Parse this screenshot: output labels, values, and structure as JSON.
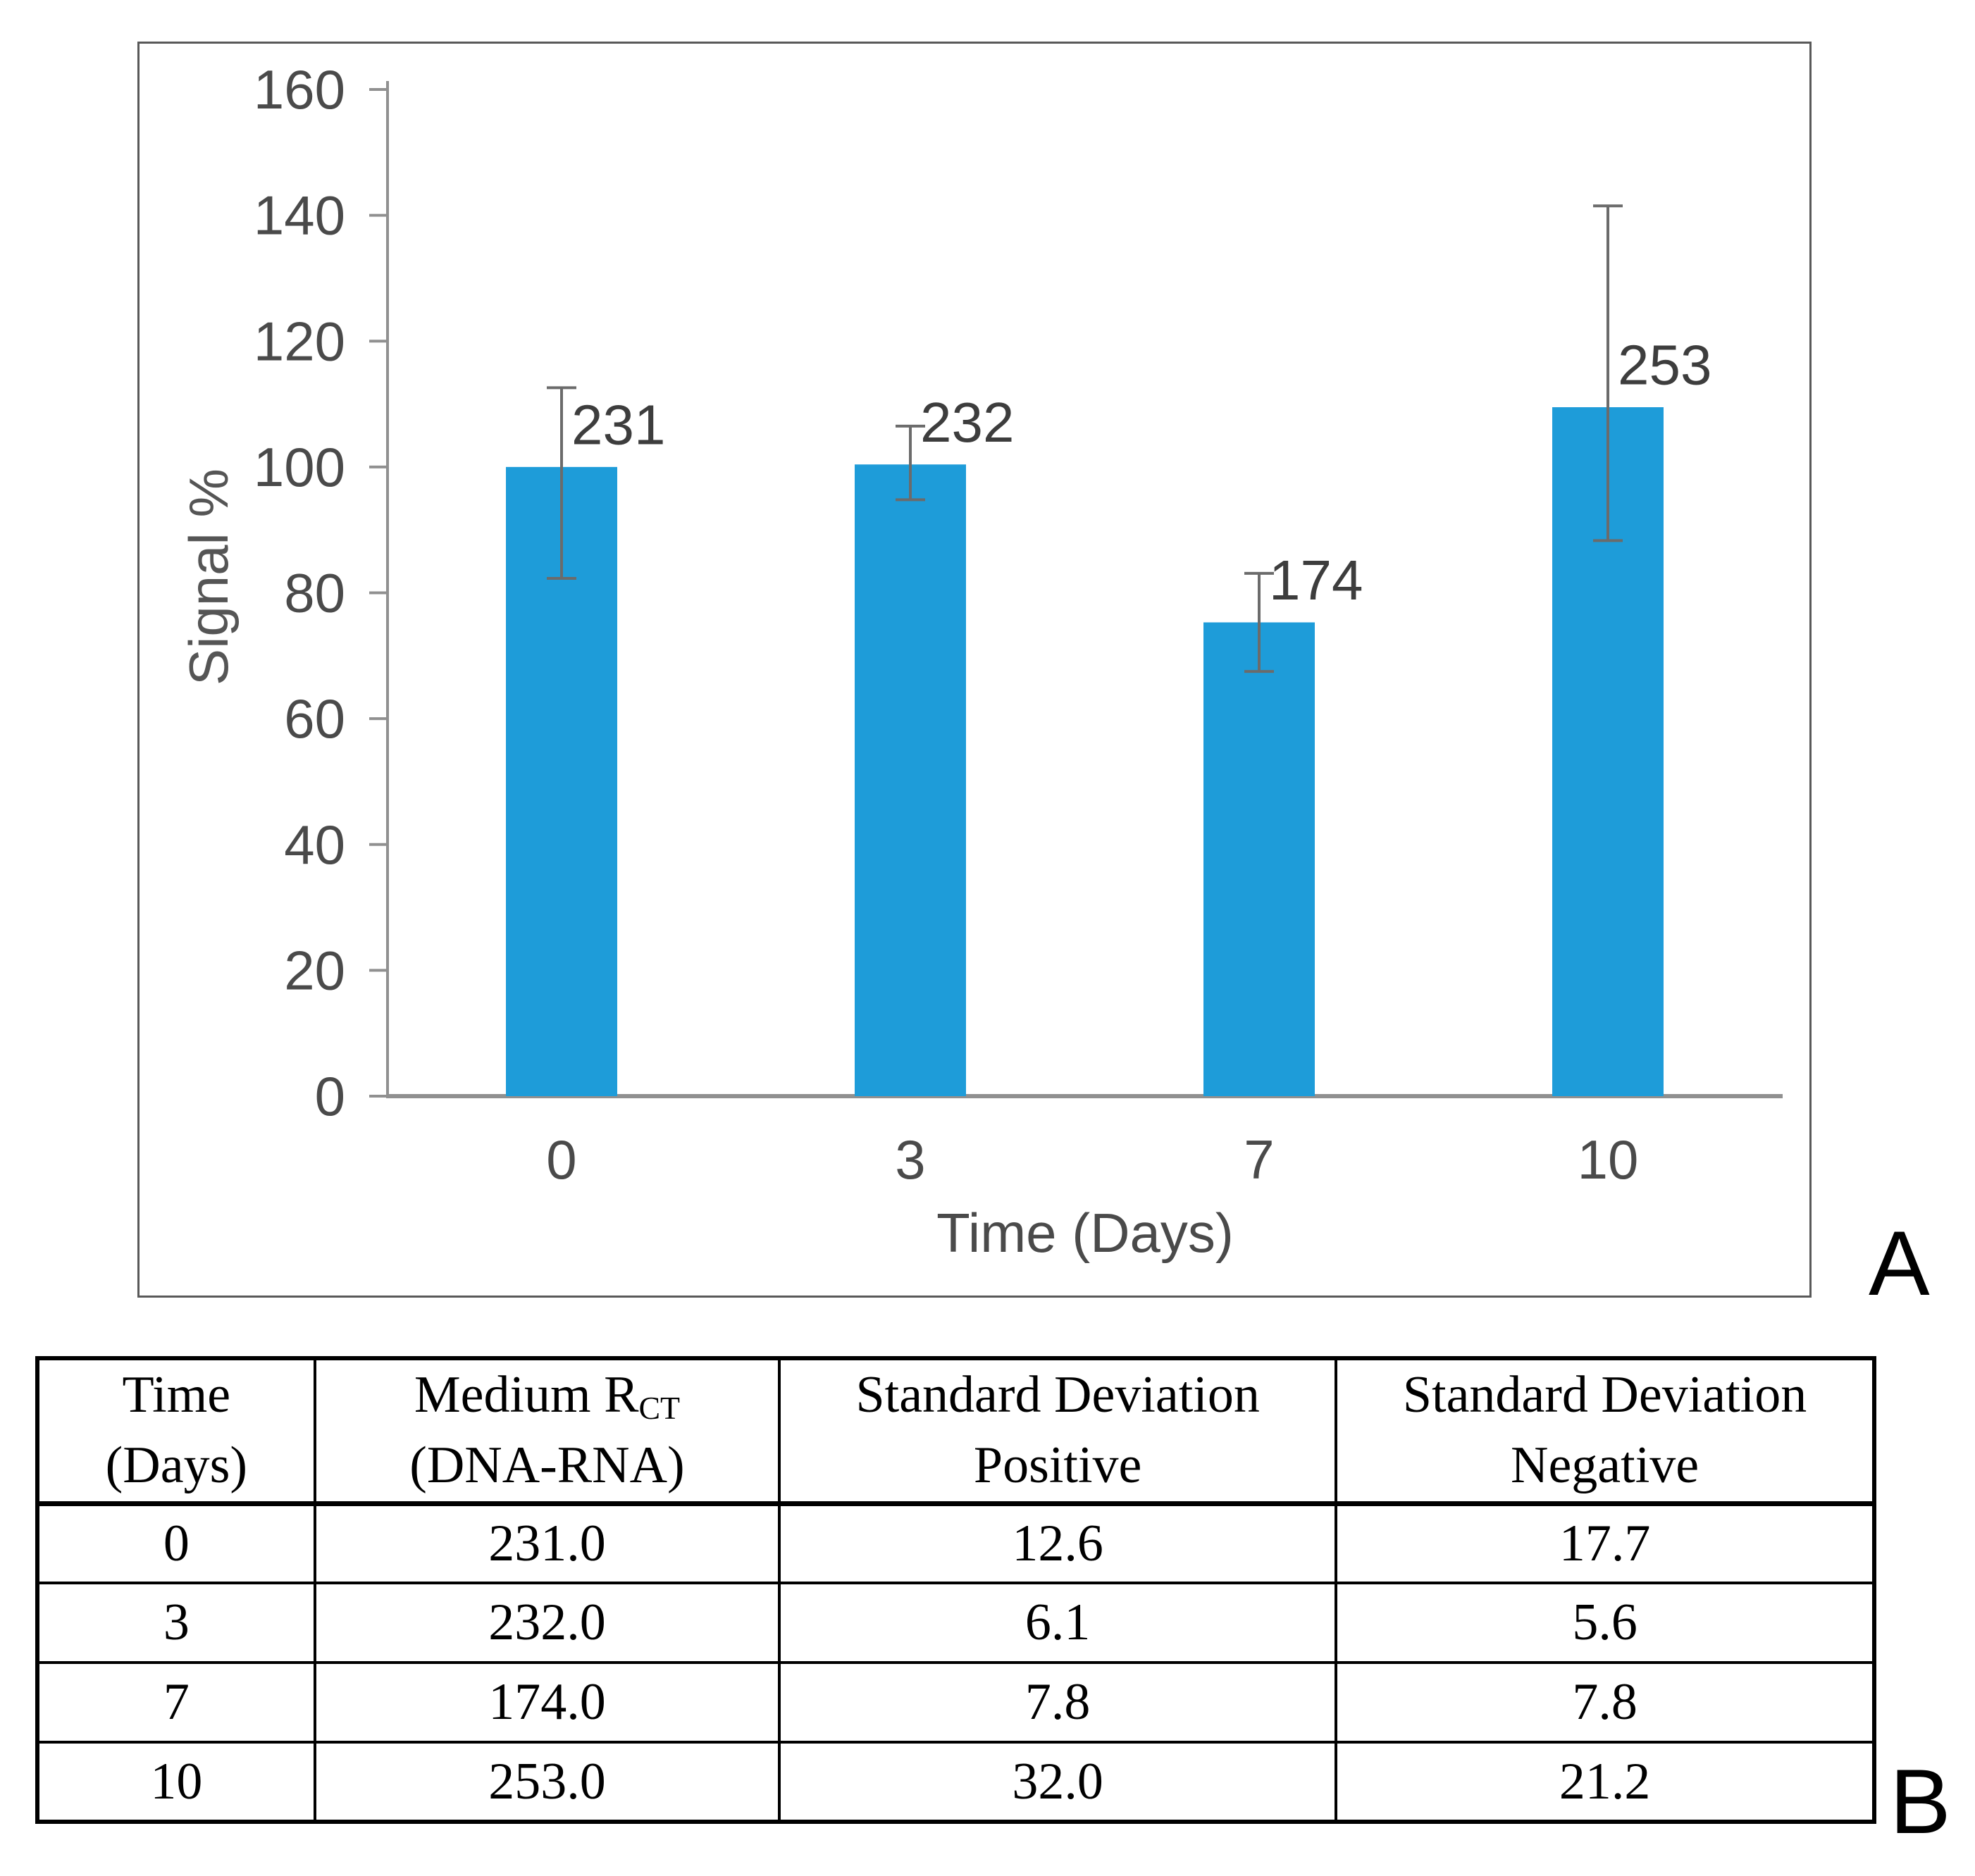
{
  "figure": {
    "panel_a_label": "A",
    "panel_b_label": "B"
  },
  "chart_data": {
    "type": "bar",
    "title": "",
    "xlabel": "Time (Days)",
    "ylabel": "Signal %",
    "categories": [
      "0",
      "3",
      "7",
      "10"
    ],
    "series": [
      {
        "name": "Signal %",
        "values_pct": [
          100.0,
          100.4,
          75.3,
          109.5
        ],
        "bar_labels": [
          "231",
          "232",
          "174",
          "253"
        ],
        "error_up_pct": [
          12.6,
          6.1,
          7.8,
          32.0
        ],
        "error_down_pct": [
          17.7,
          5.6,
          7.8,
          21.2
        ]
      }
    ],
    "ylim": [
      0,
      160
    ],
    "yticks": [
      0,
      20,
      40,
      60,
      80,
      100,
      120,
      140,
      160
    ],
    "grid": false,
    "legend": false,
    "bar_color": "#1E9CD9",
    "axis_color": "#909090",
    "tick_label_color": "#4A4A4A",
    "value_label_color": "#3D3D3D",
    "error_bar_color": "#6B6B6B"
  },
  "table": {
    "headers": [
      {
        "line1": "Time",
        "line2": "(Days)"
      },
      {
        "line1": "Medium R",
        "line1_sub": "CT",
        "line2": "(DNA-RNA)"
      },
      {
        "line1": "Standard Deviation",
        "line2": "Positive"
      },
      {
        "line1": "Standard Deviation",
        "line2": "Negative"
      }
    ],
    "rows": [
      [
        "0",
        "231.0",
        "12.6",
        "17.7"
      ],
      [
        "3",
        "232.0",
        "6.1",
        "5.6"
      ],
      [
        "7",
        "174.0",
        "7.8",
        "7.8"
      ],
      [
        "10",
        "253.0",
        "32.0",
        "21.2"
      ]
    ]
  }
}
